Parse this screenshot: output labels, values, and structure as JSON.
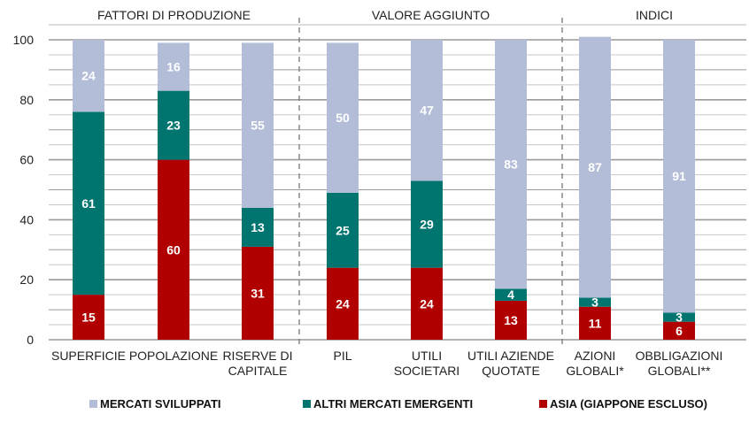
{
  "chart_data": {
    "type": "bar",
    "stacked": true,
    "groups": [
      {
        "label": "FATTORI DI PRODUZIONE",
        "start": 0,
        "end": 2
      },
      {
        "label": "VALORE AGGIUNTO",
        "start": 3,
        "end": 5
      },
      {
        "label": "INDICI",
        "start": 6,
        "end": 7
      }
    ],
    "categories": [
      [
        "SUPERFICIE"
      ],
      [
        "POPOLAZIONE"
      ],
      [
        "RISERVE DI",
        "CAPITALE"
      ],
      [
        "PIL"
      ],
      [
        "UTILI",
        "SOCIETARI"
      ],
      [
        "UTILI AZIENDE",
        "QUOTATE"
      ],
      [
        "AZIONI",
        "GLOBALI*"
      ],
      [
        "OBBLIGAZIONI",
        "GLOBALI**"
      ]
    ],
    "series": [
      {
        "name": "ASIA (GIAPPONE ESCLUSO)",
        "color": "#b00000",
        "values": [
          15,
          60,
          31,
          24,
          24,
          13,
          11,
          6
        ]
      },
      {
        "name": "ALTRI MERCATI EMERGENTI",
        "color": "#007570",
        "values": [
          61,
          23,
          13,
          25,
          29,
          4,
          3,
          3
        ]
      },
      {
        "name": "MERCATI SVILUPPATI",
        "color": "#b3bdd8",
        "values": [
          24,
          16,
          55,
          50,
          47,
          83,
          87,
          91
        ]
      }
    ],
    "ylim": [
      0,
      100
    ],
    "yticks": [
      0,
      20,
      40,
      60,
      80,
      100
    ],
    "grid": true,
    "legend_order": [
      "MERCATI SVILUPPATI",
      "ALTRI MERCATI EMERGENTI",
      "ASIA (GIAPPONE ESCLUSO)"
    ],
    "legend_placement": "bottom"
  }
}
